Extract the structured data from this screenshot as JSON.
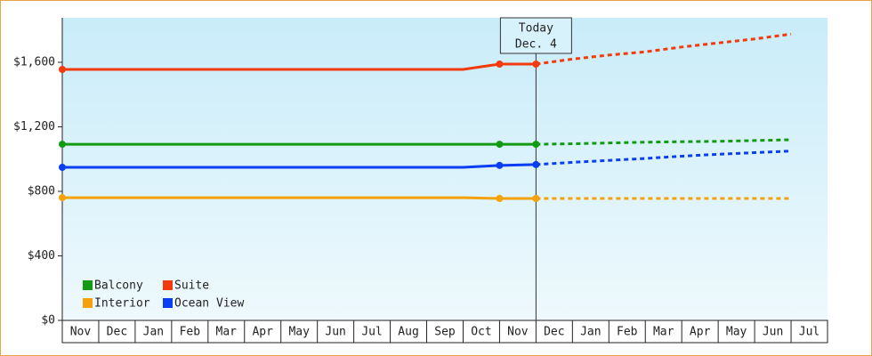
{
  "chart_data": {
    "type": "line",
    "categories": [
      "Nov",
      "Dec",
      "Jan",
      "Feb",
      "Mar",
      "Apr",
      "May",
      "Jun",
      "Jul",
      "Aug",
      "Sep",
      "Oct",
      "Nov",
      "Dec",
      "Jan",
      "Feb",
      "Mar",
      "Apr",
      "May",
      "Jun",
      "Jul"
    ],
    "series": [
      {
        "name": "Balcony",
        "color": "#129b12",
        "values": [
          1092,
          1092,
          1092,
          1092,
          1092,
          1092,
          1092,
          1092,
          1092,
          1092,
          1092,
          1092,
          1092,
          1092,
          1095,
          1100,
          1105,
          1108,
          1110,
          1115,
          1120
        ]
      },
      {
        "name": "Suite",
        "color": "#f23a0c",
        "values": [
          1556,
          1556,
          1556,
          1556,
          1556,
          1556,
          1556,
          1556,
          1556,
          1556,
          1556,
          1556,
          1589,
          1589,
          1620,
          1645,
          1665,
          1695,
          1720,
          1745,
          1775
        ]
      },
      {
        "name": "Interior",
        "color": "#f4a10c",
        "values": [
          761,
          761,
          761,
          761,
          761,
          761,
          761,
          761,
          761,
          761,
          761,
          761,
          756,
          756,
          756,
          756,
          756,
          756,
          756,
          756,
          756
        ]
      },
      {
        "name": "Ocean View",
        "color": "#0a3ef2",
        "values": [
          949,
          949,
          949,
          949,
          949,
          949,
          949,
          949,
          949,
          949,
          949,
          949,
          961,
          966,
          980,
          992,
          1004,
          1018,
          1030,
          1040,
          1050
        ]
      }
    ],
    "forecast_from": 13,
    "today": {
      "text": "Today",
      "date": "Dec. 4"
    },
    "ylim": [
      0,
      1876
    ],
    "yticks": [
      {
        "value": 0,
        "label": "$0"
      },
      {
        "value": 400,
        "label": "$400"
      },
      {
        "value": 800,
        "label": "$800"
      },
      {
        "value": 1200,
        "label": "$1,200"
      },
      {
        "value": 1600,
        "label": "$1,600"
      }
    ],
    "legend": "lower-left"
  }
}
